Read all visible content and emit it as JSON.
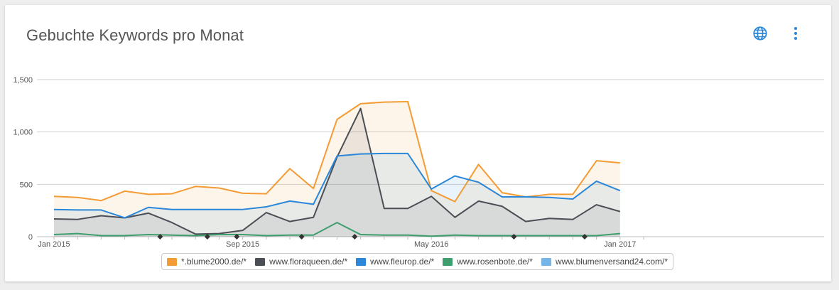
{
  "card": {
    "title": "Gebuchte Keywords pro Monat"
  },
  "icons": {
    "globe": "globe-icon",
    "menu": "more-vert-icon"
  },
  "colors": {
    "accent": "#2a87d9"
  },
  "chart_data": {
    "type": "area",
    "title": "Gebuchte Keywords pro Monat",
    "xlabel": "",
    "ylabel": "",
    "x": [
      "Jan 2015",
      "Feb 2015",
      "Mar 2015",
      "Apr 2015",
      "May 2015",
      "Jun 2015",
      "Jul 2015",
      "Aug 2015",
      "Sep 2015",
      "Oct 2015",
      "Nov 2015",
      "Dec 2015",
      "Jan 2016",
      "Feb 2016",
      "Mar 2016",
      "Apr 2016",
      "May 2016",
      "Jun 2016",
      "Jul 2016",
      "Aug 2016",
      "Sep 2016",
      "Oct 2016",
      "Nov 2016",
      "Dec 2016",
      "Jan 2017",
      "Feb 2017"
    ],
    "x_tick_labels": [
      {
        "index": 0,
        "label": "Jan 2015"
      },
      {
        "index": 8,
        "label": "Sep 2015"
      },
      {
        "index": 16,
        "label": "May 2016"
      },
      {
        "index": 24,
        "label": "Jan 2017"
      }
    ],
    "ylim": [
      0,
      1500
    ],
    "y_ticks": [
      0,
      500,
      1000,
      1500
    ],
    "y_tick_labels": [
      "0",
      "500",
      "1,000",
      "1,500"
    ],
    "grid": true,
    "legend_position": "bottom",
    "annotation_markers_at": [
      4.5,
      6.5,
      7.75,
      10.5,
      12.75,
      19.5,
      22.5
    ],
    "series": [
      {
        "name": "*.blume2000.de/*",
        "color": "#f39c35",
        "fill": true,
        "values": [
          385,
          375,
          345,
          435,
          405,
          410,
          480,
          465,
          415,
          410,
          650,
          460,
          1120,
          1270,
          1285,
          1290,
          440,
          335,
          690,
          420,
          380,
          405,
          405,
          725,
          705,
          null
        ]
      },
      {
        "name": "www.floraqueen.de/*",
        "color": "#4b4e55",
        "fill": true,
        "values": [
          170,
          165,
          200,
          180,
          225,
          135,
          25,
          30,
          60,
          230,
          145,
          185,
          760,
          1225,
          270,
          270,
          385,
          185,
          340,
          290,
          145,
          175,
          165,
          305,
          240,
          null
        ]
      },
      {
        "name": "www.fleurop.de/*",
        "color": "#2a87d9",
        "fill": true,
        "values": [
          260,
          255,
          255,
          180,
          280,
          260,
          260,
          260,
          260,
          285,
          340,
          310,
          770,
          790,
          795,
          795,
          455,
          580,
          520,
          380,
          380,
          375,
          360,
          530,
          440,
          null
        ]
      },
      {
        "name": "www.rosenbote.de/*",
        "color": "#3e9e6d",
        "fill": false,
        "values": [
          20,
          30,
          10,
          10,
          20,
          15,
          10,
          20,
          20,
          10,
          15,
          15,
          135,
          20,
          15,
          15,
          5,
          15,
          10,
          10,
          10,
          10,
          10,
          10,
          30,
          null
        ]
      },
      {
        "name": "www.blumenversand24.com/*",
        "color": "#76b5e8",
        "fill": false,
        "values": [
          null,
          null,
          null,
          null,
          null,
          null,
          null,
          null,
          null,
          null,
          null,
          null,
          null,
          null,
          null,
          null,
          null,
          null,
          null,
          null,
          null,
          null,
          null,
          null,
          null,
          null
        ]
      }
    ]
  }
}
